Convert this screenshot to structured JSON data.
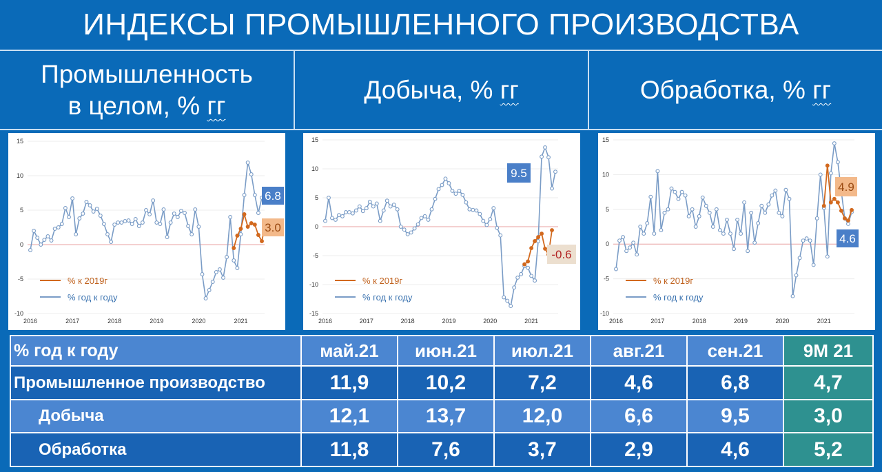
{
  "title": "ИНДЕКСЫ ПРОМЫШЛЕННОГО ПРОИЗВОДСТВА",
  "headers": [
    {
      "line1": "Промышленность",
      "line2a": "в целом, % ",
      "line2b": "гг"
    },
    {
      "line1a": "Добыча, % ",
      "line1b": "гг"
    },
    {
      "line1a": "Обработка, % ",
      "line1b": "гг"
    }
  ],
  "chart_data": [
    {
      "type": "line",
      "title": "",
      "x_tick_labels": [
        "2016",
        "2017",
        "2018",
        "2019",
        "2020",
        "2021"
      ],
      "ylim": [
        -10,
        15
      ],
      "yticks": [
        -10,
        -5,
        0,
        5,
        10,
        15
      ],
      "legend": [
        "% к 2019г",
        "% год к году"
      ],
      "legend_placement": "bottom-left",
      "series": [
        {
          "name": "% год к году",
          "color": "#7a9cc6",
          "values": [
            -0.8,
            2.0,
            1.0,
            0.0,
            0.7,
            1.2,
            0.6,
            2.3,
            2.5,
            3.0,
            5.3,
            4.0,
            6.7,
            1.5,
            3.8,
            4.5,
            6.2,
            5.7,
            4.8,
            5.2,
            4.2,
            3.0,
            1.5,
            0.4,
            2.9,
            3.2,
            3.2,
            3.4,
            3.5,
            3.0,
            3.7,
            2.7,
            3.2,
            5.0,
            4.4,
            6.4,
            3.2,
            3.0,
            5.1,
            1.1,
            3.2,
            4.5,
            4.0,
            4.9,
            4.6,
            2.7,
            1.5,
            5.1,
            2.6,
            -4.3,
            -7.8,
            -6.6,
            -5.4,
            -4.0,
            -3.6,
            -4.8,
            -1.8,
            4.0,
            -2.3,
            -3.4,
            1.5,
            7.2,
            11.9,
            10.2,
            7.2,
            4.6,
            6.8
          ]
        },
        {
          "name": "% к 2019г",
          "color": "#d2691e",
          "start_index": 58,
          "values": [
            -0.5,
            1.3,
            2.3,
            4.4,
            2.6,
            3.1,
            2.9,
            1.4,
            0.5,
            3.0
          ]
        }
      ],
      "callouts": [
        {
          "text": "6.8",
          "style": "blue"
        },
        {
          "text": "3.0",
          "style": "orange"
        }
      ]
    },
    {
      "type": "line",
      "title": "",
      "x_tick_labels": [
        "2016",
        "2017",
        "2018",
        "2019",
        "2020",
        "2021"
      ],
      "ylim": [
        -15,
        15
      ],
      "yticks": [
        -15,
        -10,
        -5,
        0,
        5,
        10,
        15
      ],
      "legend": [
        "% к 2019г",
        "% год к году"
      ],
      "legend_placement": "bottom-left",
      "series": [
        {
          "name": "% год к году",
          "color": "#7a9cc6",
          "values": [
            1.0,
            5.0,
            1.5,
            1.2,
            2.0,
            1.8,
            2.5,
            2.5,
            2.3,
            2.8,
            3.5,
            2.7,
            3.2,
            4.3,
            3.5,
            4.0,
            1.0,
            2.8,
            4.5,
            3.5,
            3.8,
            3.0,
            0.0,
            -0.5,
            -1.3,
            -1.0,
            -0.3,
            0.4,
            1.5,
            1.8,
            1.2,
            3.0,
            4.8,
            6.5,
            7.2,
            8.3,
            7.5,
            6.2,
            5.7,
            6.2,
            5.5,
            4.2,
            3.0,
            2.9,
            2.8,
            2.2,
            1.0,
            0.3,
            1.3,
            3.2,
            -0.2,
            -1.5,
            -12.2,
            -12.8,
            -13.7,
            -10.5,
            -8.8,
            -8.2,
            -6.8,
            -7.1,
            -8.5,
            -9.3,
            -2.5,
            12.1,
            13.7,
            12.0,
            6.6,
            9.5
          ]
        },
        {
          "name": "% к 2019г",
          "color": "#d2691e",
          "start_index": 58,
          "values": [
            -6.5,
            -6.0,
            -3.7,
            -2.5,
            -1.8,
            -1.2,
            -3.8,
            -4.8,
            -0.6
          ]
        }
      ],
      "callouts": [
        {
          "text": "9.5",
          "style": "blue"
        },
        {
          "text": "-0.6",
          "style": "beige"
        }
      ]
    },
    {
      "type": "line",
      "title": "",
      "x_tick_labels": [
        "2016",
        "2017",
        "2018",
        "2019",
        "2020",
        "2021"
      ],
      "ylim": [
        -10,
        15
      ],
      "yticks": [
        -10,
        -5,
        0,
        5,
        10,
        15
      ],
      "legend": [
        "% к 2019г",
        "% год к году"
      ],
      "legend_placement": "bottom-left",
      "series": [
        {
          "name": "% год к году",
          "color": "#7a9cc6",
          "values": [
            -3.6,
            0.5,
            1.0,
            -1.0,
            -0.5,
            0.2,
            -1.5,
            2.5,
            1.5,
            3.0,
            6.8,
            1.5,
            10.5,
            2.0,
            4.5,
            5.0,
            8.0,
            7.5,
            6.5,
            7.5,
            7.0,
            4.0,
            5.0,
            2.5,
            4.0,
            6.7,
            5.5,
            4.5,
            2.5,
            5.0,
            2.0,
            1.5,
            3.5,
            1.5,
            -0.7,
            3.5,
            1.5,
            6.0,
            -1.0,
            4.5,
            0.2,
            3.0,
            5.5,
            4.5,
            5.7,
            7.0,
            7.7,
            4.5,
            4.0,
            7.8,
            6.5,
            -7.5,
            -4.5,
            -2.0,
            0.5,
            0.8,
            0.5,
            -3.0,
            3.7,
            10.0,
            5.2,
            -1.8,
            10.2,
            14.5,
            11.8,
            7.6,
            3.7,
            2.9,
            4.6
          ]
        },
        {
          "name": "% к 2019г",
          "color": "#d2691e",
          "start_index": 60,
          "values": [
            5.5,
            11.3,
            6.0,
            6.5,
            6.0,
            4.8,
            3.7,
            3.4,
            4.9
          ]
        }
      ],
      "callouts": [
        {
          "text": "4.9",
          "style": "orange"
        },
        {
          "text": "4.6",
          "style": "blue"
        }
      ]
    }
  ],
  "table": {
    "header_label": "% год к году",
    "columns": [
      "май.21",
      "июн.21",
      "июл.21",
      "авг.21",
      "сен.21",
      "9М 21"
    ],
    "rows": [
      {
        "label": "Промышленное производство",
        "values": [
          "11,9",
          "10,2",
          "7,2",
          "4,6",
          "6,8",
          "4,7"
        ]
      },
      {
        "label": "Добыча",
        "values": [
          "12,1",
          "13,7",
          "12,0",
          "6,6",
          "9,5",
          "3,0"
        ]
      },
      {
        "label": "Обработка",
        "values": [
          "11,8",
          "7,6",
          "3,7",
          "2,9",
          "4,6",
          "5,2"
        ]
      }
    ]
  },
  "colors": {
    "background": "#0a6ab8",
    "series_yoy": "#7a9cc6",
    "series_2019": "#d2691e",
    "table_cell": "#4b86d1",
    "table_accent": "#2e9190"
  }
}
